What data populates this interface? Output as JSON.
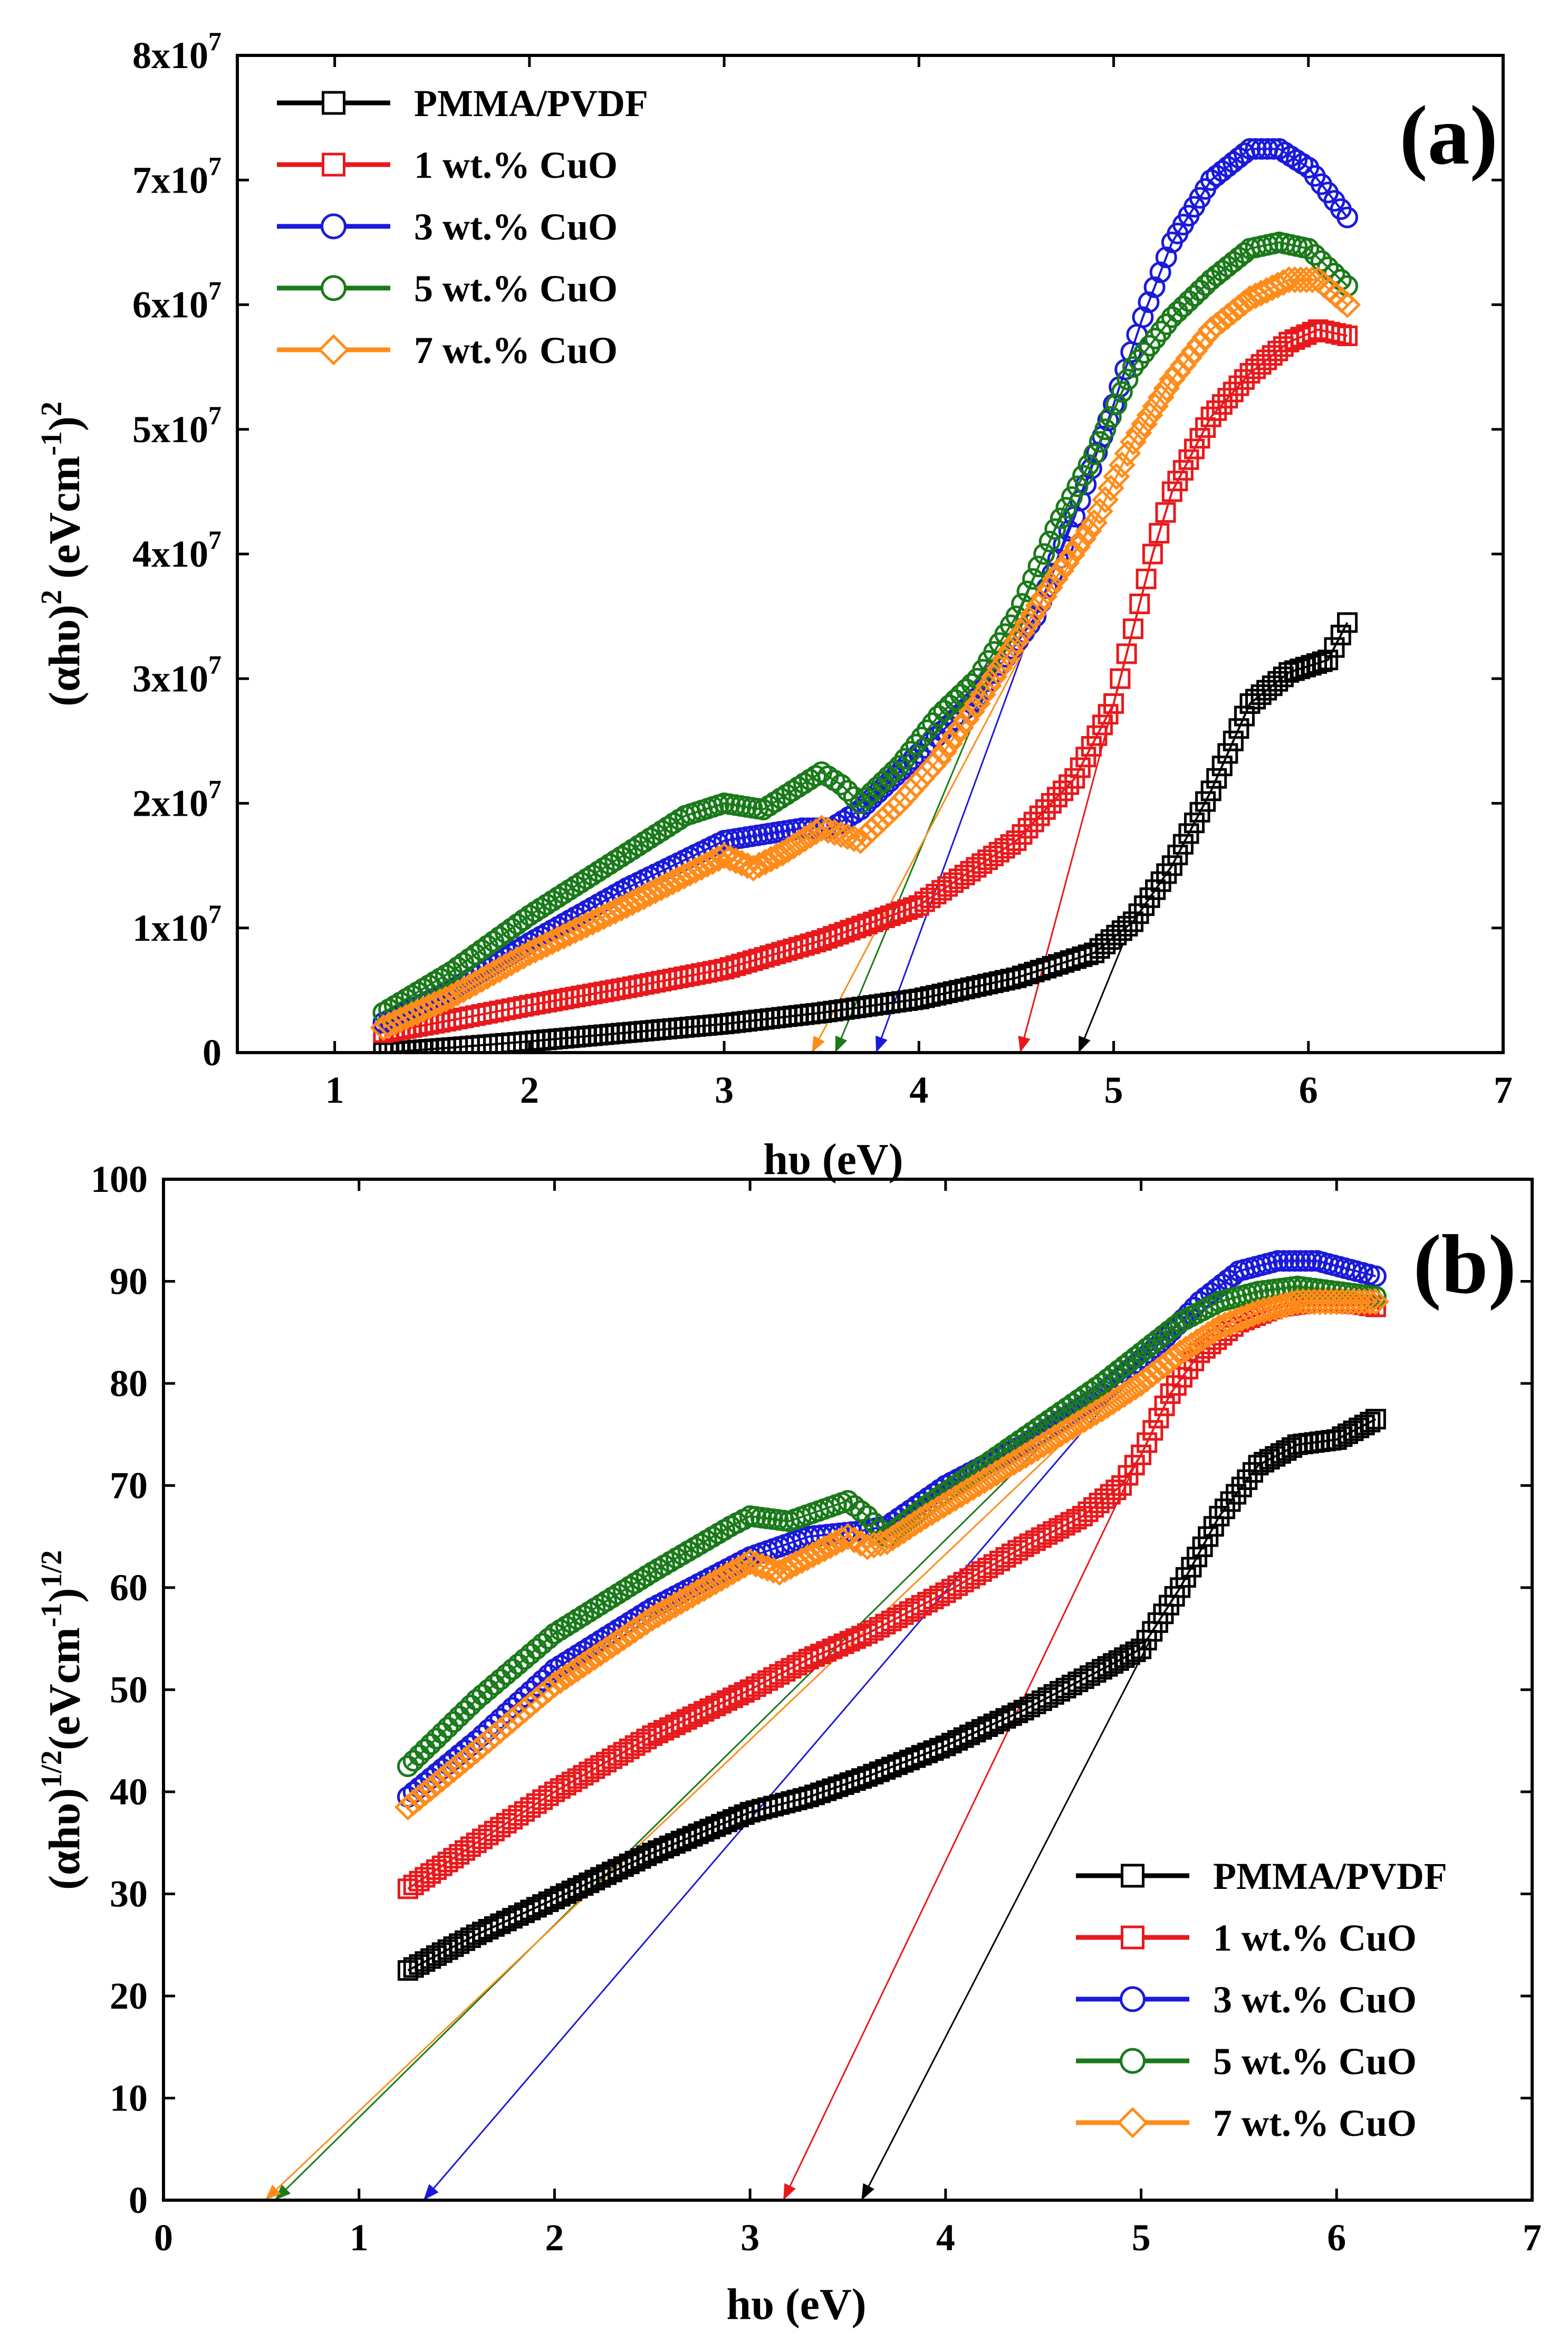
{
  "chart_data": [
    {
      "type": "scatter",
      "panel_label": "(a)",
      "xlabel": "hυ (eV)",
      "ylabel": {
        "base": "(αhυ)",
        "sup1": "2",
        "mid": " (eVcm",
        "sup2": "-1",
        "close": ")",
        "sup3": "2"
      },
      "xlim": [
        0.5,
        7
      ],
      "ylim": [
        0,
        80000000
      ],
      "x_ticks": [
        1,
        2,
        3,
        4,
        5,
        6,
        7
      ],
      "x_tick_labels": [
        "1",
        "2",
        "3",
        "4",
        "5",
        "6",
        "7"
      ],
      "y_ticks": [
        0,
        10000000,
        20000000,
        30000000,
        40000000,
        50000000,
        60000000,
        70000000,
        80000000
      ],
      "y_tick_labels": [
        {
          "base": "0",
          "exp": ""
        },
        {
          "base": "1x10",
          "exp": "7"
        },
        {
          "base": "2x10",
          "exp": "7"
        },
        {
          "base": "3x10",
          "exp": "7"
        },
        {
          "base": "4x10",
          "exp": "7"
        },
        {
          "base": "5x10",
          "exp": "7"
        },
        {
          "base": "6x10",
          "exp": "7"
        },
        {
          "base": "7x10",
          "exp": "7"
        },
        {
          "base": "8x10",
          "exp": "7"
        }
      ],
      "legend_position": "top-left",
      "series": [
        {
          "name": "PMMA/PVDF",
          "color": "#000000",
          "marker": "square",
          "points": [
            [
              1.25,
              0
            ],
            [
              1.6,
              400000
            ],
            [
              2.0,
              900000
            ],
            [
              2.5,
              1600000
            ],
            [
              3.0,
              2300000
            ],
            [
              3.5,
              3200000
            ],
            [
              4.0,
              4300000
            ],
            [
              4.5,
              6000000
            ],
            [
              4.9,
              8000000
            ],
            [
              5.1,
              10500000
            ],
            [
              5.3,
              15000000
            ],
            [
              5.5,
              21000000
            ],
            [
              5.7,
              28000000
            ],
            [
              5.9,
              30500000
            ],
            [
              6.1,
              31500000
            ],
            [
              6.2,
              34500000
            ]
          ],
          "tangent": [
            [
              4.82,
              0
            ],
            [
              5.05,
              8800000
            ]
          ]
        },
        {
          "name": "1 wt.% CuO",
          "color": "#e8191c",
          "marker": "square",
          "points": [
            [
              1.25,
              1600000
            ],
            [
              1.6,
              2600000
            ],
            [
              2.0,
              3800000
            ],
            [
              2.5,
              5200000
            ],
            [
              3.0,
              6700000
            ],
            [
              3.5,
              9000000
            ],
            [
              4.0,
              11800000
            ],
            [
              4.5,
              17000000
            ],
            [
              4.8,
              22000000
            ],
            [
              5.0,
              28000000
            ],
            [
              5.1,
              34000000
            ],
            [
              5.2,
              40000000
            ],
            [
              5.3,
              45000000
            ],
            [
              5.5,
              51000000
            ],
            [
              5.7,
              54500000
            ],
            [
              5.9,
              57000000
            ],
            [
              6.05,
              58000000
            ],
            [
              6.2,
              57500000
            ]
          ],
          "tangent": [
            [
              4.52,
              0
            ],
            [
              5.0,
              28000000
            ]
          ]
        },
        {
          "name": "3 wt.% CuO",
          "color": "#1a1adb",
          "marker": "circle",
          "points": [
            [
              1.25,
              2400000
            ],
            [
              1.6,
              5000000
            ],
            [
              2.0,
              8800000
            ],
            [
              2.5,
              13200000
            ],
            [
              3.0,
              17000000
            ],
            [
              3.2,
              17500000
            ],
            [
              3.4,
              18000000
            ],
            [
              3.55,
              18000000
            ],
            [
              3.7,
              19500000
            ],
            [
              4.0,
              24000000
            ],
            [
              4.3,
              28500000
            ],
            [
              4.6,
              35000000
            ],
            [
              4.8,
              43000000
            ],
            [
              5.0,
              52000000
            ],
            [
              5.15,
              59000000
            ],
            [
              5.3,
              65000000
            ],
            [
              5.5,
              70000000
            ],
            [
              5.7,
              72500000
            ],
            [
              5.85,
              72500000
            ],
            [
              6.0,
              71000000
            ],
            [
              6.1,
              69000000
            ],
            [
              6.2,
              67000000
            ]
          ],
          "tangent": [
            [
              3.78,
              0
            ],
            [
              5.0,
              52000000
            ]
          ]
        },
        {
          "name": "5 wt.% CuO",
          "color": "#1a7a1a",
          "marker": "circle",
          "points": [
            [
              1.25,
              3200000
            ],
            [
              1.6,
              6500000
            ],
            [
              2.0,
              11000000
            ],
            [
              2.5,
              16000000
            ],
            [
              2.8,
              19000000
            ],
            [
              3.0,
              20000000
            ],
            [
              3.2,
              19500000
            ],
            [
              3.35,
              21000000
            ],
            [
              3.5,
              22500000
            ],
            [
              3.6,
              21500000
            ],
            [
              3.7,
              20000000
            ],
            [
              3.9,
              23000000
            ],
            [
              4.1,
              27000000
            ],
            [
              4.3,
              30000000
            ],
            [
              4.5,
              35000000
            ],
            [
              4.7,
              42000000
            ],
            [
              4.9,
              48000000
            ],
            [
              5.1,
              55000000
            ],
            [
              5.3,
              59000000
            ],
            [
              5.5,
              62000000
            ],
            [
              5.7,
              64500000
            ],
            [
              5.85,
              65000000
            ],
            [
              6.0,
              64500000
            ],
            [
              6.1,
              63000000
            ],
            [
              6.2,
              61500000
            ]
          ],
          "tangent": [
            [
              3.57,
              0
            ],
            [
              4.75,
              44000000
            ]
          ]
        },
        {
          "name": "7 wt.% CuO",
          "color": "#ff8c1a",
          "marker": "diamond",
          "points": [
            [
              1.25,
              2000000
            ],
            [
              1.6,
              4500000
            ],
            [
              2.0,
              8000000
            ],
            [
              2.5,
              11800000
            ],
            [
              3.0,
              15800000
            ],
            [
              3.15,
              14800000
            ],
            [
              3.3,
              16000000
            ],
            [
              3.5,
              18000000
            ],
            [
              3.6,
              17500000
            ],
            [
              3.7,
              17000000
            ],
            [
              3.9,
              20000000
            ],
            [
              4.1,
              23500000
            ],
            [
              4.3,
              28000000
            ],
            [
              4.5,
              33000000
            ],
            [
              4.7,
              38000000
            ],
            [
              4.9,
              42500000
            ],
            [
              5.1,
              49000000
            ],
            [
              5.3,
              54000000
            ],
            [
              5.5,
              58000000
            ],
            [
              5.7,
              60500000
            ],
            [
              5.9,
              62000000
            ],
            [
              6.05,
              62000000
            ],
            [
              6.2,
              60000000
            ]
          ],
          "tangent": [
            [
              3.45,
              0
            ],
            [
              4.9,
              43000000
            ]
          ]
        }
      ]
    },
    {
      "type": "scatter",
      "panel_label": "(b)",
      "xlabel": "hυ (eV)",
      "ylabel": {
        "base": "(αhυ)",
        "sup1": "1/2",
        "mid": "(eVcm",
        "sup2": "-1",
        "close": ")",
        "sup3": "1/2"
      },
      "xlim": [
        0,
        7
      ],
      "ylim": [
        0,
        100
      ],
      "x_ticks": [
        0,
        1,
        2,
        3,
        4,
        5,
        6,
        7
      ],
      "x_tick_labels": [
        "0",
        "1",
        "2",
        "3",
        "4",
        "5",
        "6",
        "7"
      ],
      "y_ticks": [
        0,
        10,
        20,
        30,
        40,
        50,
        60,
        70,
        80,
        90,
        100
      ],
      "y_tick_labels": [
        "0",
        "10",
        "20",
        "30",
        "40",
        "50",
        "60",
        "70",
        "80",
        "90",
        "100"
      ],
      "legend_position": "bottom-right",
      "series": [
        {
          "name": "PMMA/PVDF",
          "color": "#000000",
          "marker": "square",
          "points": [
            [
              1.25,
              22.5
            ],
            [
              1.6,
              26
            ],
            [
              2.0,
              29.5
            ],
            [
              2.5,
              34
            ],
            [
              3.0,
              38
            ],
            [
              3.3,
              39.5
            ],
            [
              3.6,
              41.5
            ],
            [
              4.0,
              44.5
            ],
            [
              4.4,
              48
            ],
            [
              4.8,
              52
            ],
            [
              5.0,
              54
            ],
            [
              5.2,
              60
            ],
            [
              5.4,
              67
            ],
            [
              5.6,
              72
            ],
            [
              5.8,
              74
            ],
            [
              6.0,
              74.5
            ],
            [
              6.2,
              76.5
            ]
          ],
          "tangent": [
            [
              3.57,
              0
            ],
            [
              5.05,
              55
            ]
          ]
        },
        {
          "name": "1 wt.% CuO",
          "color": "#e8191c",
          "marker": "square",
          "points": [
            [
              1.25,
              30.5
            ],
            [
              1.6,
              35
            ],
            [
              2.0,
              40
            ],
            [
              2.5,
              45.5
            ],
            [
              3.0,
              50
            ],
            [
              3.3,
              53
            ],
            [
              3.6,
              55.5
            ],
            [
              4.0,
              59.5
            ],
            [
              4.4,
              64
            ],
            [
              4.7,
              67
            ],
            [
              4.9,
              70
            ],
            [
              5.0,
              73
            ],
            [
              5.15,
              79
            ],
            [
              5.3,
              83
            ],
            [
              5.5,
              86
            ],
            [
              5.7,
              87.5
            ],
            [
              5.9,
              88
            ],
            [
              6.1,
              87.8
            ],
            [
              6.2,
              87.5
            ]
          ],
          "tangent": [
            [
              3.17,
              0
            ],
            [
              4.97,
              72
            ]
          ]
        },
        {
          "name": "3 wt.% CuO",
          "color": "#1a1adb",
          "marker": "circle",
          "points": [
            [
              1.25,
              39.5
            ],
            [
              1.6,
              45
            ],
            [
              2.0,
              52
            ],
            [
              2.5,
              58
            ],
            [
              3.0,
              63
            ],
            [
              3.3,
              65
            ],
            [
              3.55,
              65.5
            ],
            [
              3.7,
              66
            ],
            [
              4.0,
              70
            ],
            [
              4.4,
              74
            ],
            [
              4.8,
              79
            ],
            [
              5.1,
              84
            ],
            [
              5.3,
              88
            ],
            [
              5.5,
              91
            ],
            [
              5.7,
              92
            ],
            [
              5.9,
              92
            ],
            [
              6.1,
              91
            ],
            [
              6.2,
              90.5
            ]
          ],
          "tangent": [
            [
              1.33,
              0
            ],
            [
              5.0,
              82
            ]
          ]
        },
        {
          "name": "5 wt.% CuO",
          "color": "#1a7a1a",
          "marker": "circle",
          "points": [
            [
              1.25,
              42.5
            ],
            [
              1.6,
              49
            ],
            [
              2.0,
              55.5
            ],
            [
              2.5,
              61.5
            ],
            [
              2.9,
              66
            ],
            [
              3.0,
              67
            ],
            [
              3.2,
              66.5
            ],
            [
              3.35,
              67.5
            ],
            [
              3.5,
              68.5
            ],
            [
              3.6,
              67
            ],
            [
              3.7,
              65
            ],
            [
              3.9,
              68
            ],
            [
              4.2,
              72
            ],
            [
              4.5,
              76
            ],
            [
              4.8,
              80
            ],
            [
              5.0,
              83
            ],
            [
              5.2,
              86
            ],
            [
              5.4,
              88
            ],
            [
              5.6,
              89
            ],
            [
              5.8,
              89.5
            ],
            [
              6.0,
              89
            ],
            [
              6.2,
              88.5
            ]
          ],
          "tangent": [
            [
              0.57,
              0
            ],
            [
              4.6,
              76
            ]
          ]
        },
        {
          "name": "7 wt.% CuO",
          "color": "#ff8c1a",
          "marker": "diamond",
          "points": [
            [
              1.25,
              38.5
            ],
            [
              1.6,
              44
            ],
            [
              2.0,
              50.5
            ],
            [
              2.5,
              57
            ],
            [
              3.0,
              62.5
            ],
            [
              3.15,
              61.5
            ],
            [
              3.35,
              63.5
            ],
            [
              3.5,
              65
            ],
            [
              3.6,
              64
            ],
            [
              3.7,
              64.5
            ],
            [
              3.9,
              67
            ],
            [
              4.2,
              70.5
            ],
            [
              4.5,
              74
            ],
            [
              4.8,
              77.5
            ],
            [
              5.0,
              80
            ],
            [
              5.2,
              83
            ],
            [
              5.4,
              85.5
            ],
            [
              5.6,
              87
            ],
            [
              5.8,
              88
            ],
            [
              6.0,
              88
            ],
            [
              6.2,
              88
            ]
          ],
          "tangent": [
            [
              0.52,
              0
            ],
            [
              4.7,
              76
            ]
          ]
        }
      ]
    }
  ]
}
